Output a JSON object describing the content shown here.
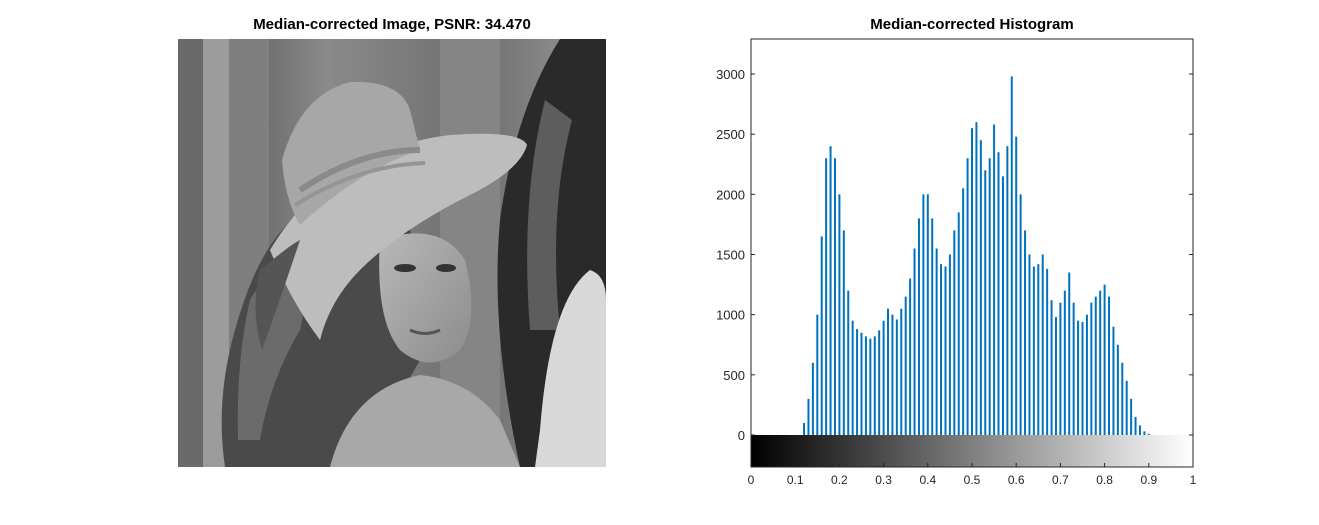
{
  "left_panel": {
    "title": "Median-corrected Image, PSNR: 34.470",
    "image_subject": "grayscale portrait of a woman wearing a wide-brimmed hat with a feather"
  },
  "colors": {
    "bar": "#0072BD",
    "axes": "#262626",
    "background": "#ffffff"
  },
  "chart_data": {
    "type": "bar",
    "title": "Median-corrected Histogram",
    "xlabel": "",
    "ylabel": "",
    "xlim": [
      0,
      1
    ],
    "ylim": [
      -270,
      3200
    ],
    "grid": false,
    "colorbar": "grayscale gradient from black at 0 to white at 1 along the x axis",
    "x_ticks": [
      "0",
      "0.1",
      "0.2",
      "0.3",
      "0.4",
      "0.5",
      "0.6",
      "0.7",
      "0.8",
      "0.9",
      "1"
    ],
    "y_ticks": [
      "0",
      "500",
      "1000",
      "1500",
      "2000",
      "2500",
      "3000"
    ],
    "x": [
      0.12,
      0.13,
      0.14,
      0.15,
      0.16,
      0.17,
      0.18,
      0.19,
      0.2,
      0.21,
      0.22,
      0.23,
      0.24,
      0.25,
      0.26,
      0.27,
      0.28,
      0.29,
      0.3,
      0.31,
      0.32,
      0.33,
      0.34,
      0.35,
      0.36,
      0.37,
      0.38,
      0.39,
      0.4,
      0.41,
      0.42,
      0.43,
      0.44,
      0.45,
      0.46,
      0.47,
      0.48,
      0.49,
      0.5,
      0.51,
      0.52,
      0.53,
      0.54,
      0.55,
      0.56,
      0.57,
      0.58,
      0.59,
      0.6,
      0.61,
      0.62,
      0.63,
      0.64,
      0.65,
      0.66,
      0.67,
      0.68,
      0.69,
      0.7,
      0.71,
      0.72,
      0.73,
      0.74,
      0.75,
      0.76,
      0.77,
      0.78,
      0.79,
      0.8,
      0.81,
      0.82,
      0.83,
      0.84,
      0.85,
      0.86,
      0.87,
      0.88,
      0.89,
      0.9
    ],
    "values": [
      100,
      300,
      600,
      1000,
      1650,
      2300,
      2400,
      2300,
      2000,
      1700,
      1200,
      950,
      880,
      850,
      820,
      800,
      820,
      870,
      950,
      1050,
      1000,
      960,
      1050,
      1150,
      1300,
      1550,
      1800,
      2000,
      2000,
      1800,
      1550,
      1420,
      1400,
      1500,
      1700,
      1850,
      2050,
      2300,
      2550,
      2600,
      2450,
      2200,
      2300,
      2580,
      2350,
      2150,
      2400,
      2980,
      2480,
      2000,
      1700,
      1500,
      1400,
      1420,
      1500,
      1380,
      1120,
      980,
      1100,
      1200,
      1350,
      1100,
      950,
      940,
      1000,
      1100,
      1150,
      1200,
      1250,
      1150,
      900,
      750,
      600,
      450,
      300,
      150,
      80,
      30,
      10
    ]
  }
}
